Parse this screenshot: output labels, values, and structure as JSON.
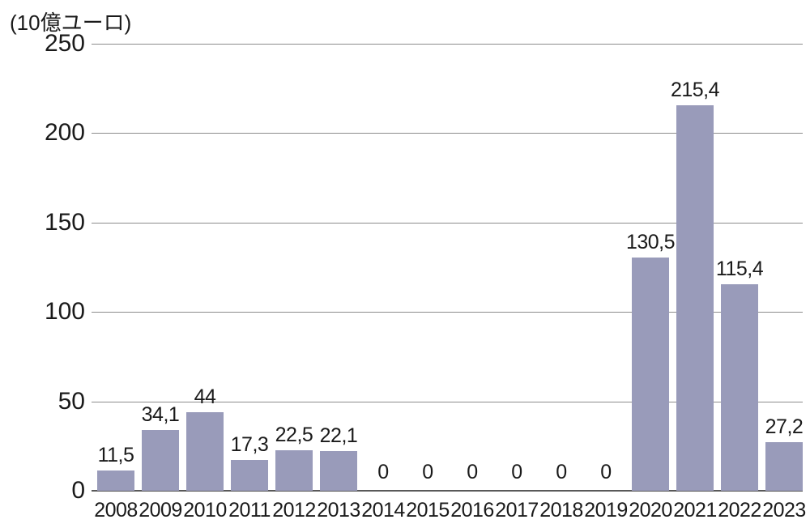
{
  "chart_data": {
    "type": "bar",
    "title": "(10億ユーロ)",
    "categories": [
      "2008",
      "2009",
      "2010",
      "2011",
      "2012",
      "2013",
      "2014",
      "2015",
      "2016",
      "2017",
      "2018",
      "2019",
      "2020",
      "2021",
      "2022",
      "2023"
    ],
    "values": [
      11.5,
      34.1,
      44,
      17.3,
      22.5,
      22.1,
      0,
      0,
      0,
      0,
      0,
      0,
      130.5,
      215.4,
      115.4,
      27.2
    ],
    "value_labels": [
      "11,5",
      "34,1",
      "44",
      "17,3",
      "22,5",
      "22,1",
      "0",
      "0",
      "0",
      "0",
      "0",
      "0",
      "130,5",
      "215,4",
      "115,4",
      "27,2"
    ],
    "yticks": [
      0,
      50,
      100,
      150,
      200,
      250
    ],
    "ylim": [
      0,
      250
    ],
    "xlabel": "",
    "ylabel": "(10億ユーロ)",
    "grid": "horizontal",
    "legend": "none",
    "colors": {
      "bar": "#999bba",
      "gridline": "#8c8c8c",
      "axis": "#595959",
      "text": "#1a1a1a",
      "background": "#ffffff"
    }
  }
}
